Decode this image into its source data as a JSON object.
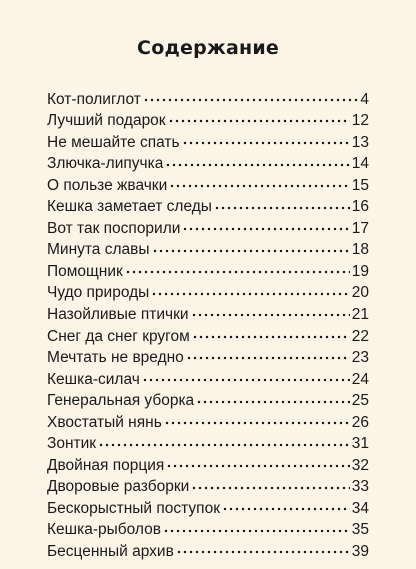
{
  "title": "Содержание",
  "entries": [
    {
      "title": "Кот-полиглот",
      "page": "4"
    },
    {
      "title": "Лучший подарок",
      "page": "12"
    },
    {
      "title": "Не мешайте спать",
      "page": "13"
    },
    {
      "title": "Злючка-липучка",
      "page": "14"
    },
    {
      "title": "О пользе жвачки",
      "page": "15"
    },
    {
      "title": "Кешка заметает следы",
      "page": "16"
    },
    {
      "title": "Вот так поспорили",
      "page": "17"
    },
    {
      "title": "Минута славы",
      "page": "18"
    },
    {
      "title": "Помощник",
      "page": "19"
    },
    {
      "title": "Чудо природы",
      "page": "20"
    },
    {
      "title": "Назойливые птички",
      "page": "21"
    },
    {
      "title": "Снег да снег кругом",
      "page": "22"
    },
    {
      "title": "Мечтать не вредно",
      "page": "23"
    },
    {
      "title": "Кешка-силач",
      "page": "24"
    },
    {
      "title": "Генеральная уборка",
      "page": "25"
    },
    {
      "title": "Хвостатый нянь",
      "page": "26"
    },
    {
      "title": "Зонтик",
      "page": "31"
    },
    {
      "title": "Двойная порция",
      "page": "32"
    },
    {
      "title": "Дворовые разборки",
      "page": "33"
    },
    {
      "title": "Бескорыстный поступок",
      "page": "34"
    },
    {
      "title": "Кешка-рыболов",
      "page": "35"
    },
    {
      "title": "Бесценный архив",
      "page": "39"
    }
  ]
}
